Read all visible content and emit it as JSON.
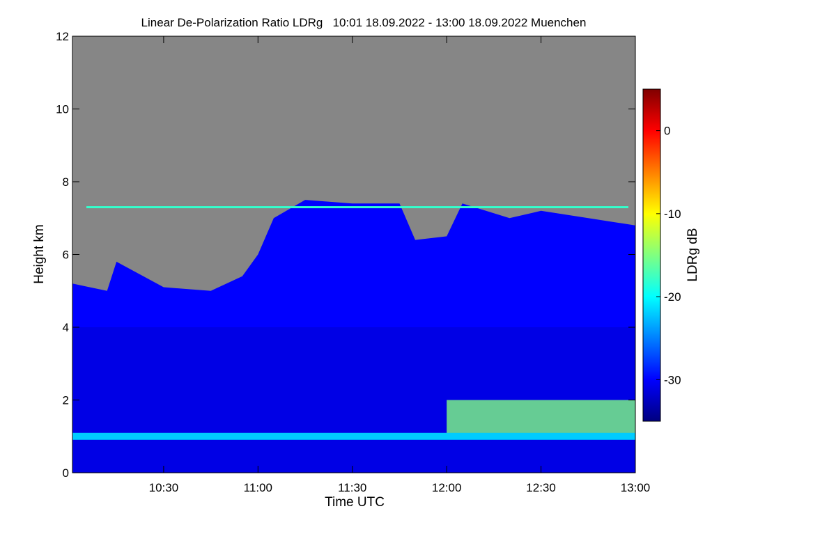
{
  "chart_data": {
    "type": "heatmap",
    "title": "Linear De-Polarization Ratio LDRg   10:01 18.09.2022 - 13:00 18.09.2022 Muenchen",
    "xlabel": "Time UTC",
    "ylabel": "Height km",
    "colorbar_label": "LDRg dB",
    "x_range": [
      "10:01",
      "13:00"
    ],
    "x_ticks": [
      "10:30",
      "11:00",
      "11:30",
      "12:00",
      "12:30",
      "13:00"
    ],
    "ylim": [
      0,
      12
    ],
    "y_ticks": [
      0,
      2,
      4,
      6,
      8,
      10,
      12
    ],
    "color_range": [
      -35,
      5
    ],
    "colorbar_ticks": [
      0,
      -10,
      -20,
      -30
    ],
    "no_data_color": "#868686",
    "colormap": [
      "#00007f",
      "#0000ff",
      "#0080ff",
      "#00ffff",
      "#80ff80",
      "#ffff00",
      "#ff8000",
      "#ff0000",
      "#800000"
    ],
    "features": [
      {
        "name": "cloud top boundary (approx.)",
        "units": "time, km",
        "points": [
          [
            "10:01",
            5.2
          ],
          [
            "10:12",
            5.0
          ],
          [
            "10:15",
            5.8
          ],
          [
            "10:30",
            5.1
          ],
          [
            "10:45",
            5.0
          ],
          [
            "10:55",
            5.4
          ],
          [
            "11:00",
            6.0
          ],
          [
            "11:05",
            7.0
          ],
          [
            "11:15",
            7.5
          ],
          [
            "11:30",
            7.4
          ],
          [
            "11:45",
            7.4
          ],
          [
            "11:50",
            6.4
          ],
          [
            "12:00",
            6.5
          ],
          [
            "12:05",
            7.4
          ],
          [
            "12:20",
            7.0
          ],
          [
            "12:30",
            7.2
          ],
          [
            "12:45",
            7.0
          ],
          [
            "13:00",
            6.8
          ]
        ]
      },
      {
        "name": "aerosol layer",
        "units": "km",
        "height": 1.0,
        "ldr_db": -22
      },
      {
        "name": "thin layer",
        "units": "km",
        "height": 7.3,
        "ldr_db": -18
      },
      {
        "name": "low depolarizing cloud",
        "units": "time, km",
        "time_range": [
          "12:00",
          "13:00"
        ],
        "height_range": [
          1.0,
          2.0
        ],
        "ldr_db": -15
      }
    ]
  }
}
